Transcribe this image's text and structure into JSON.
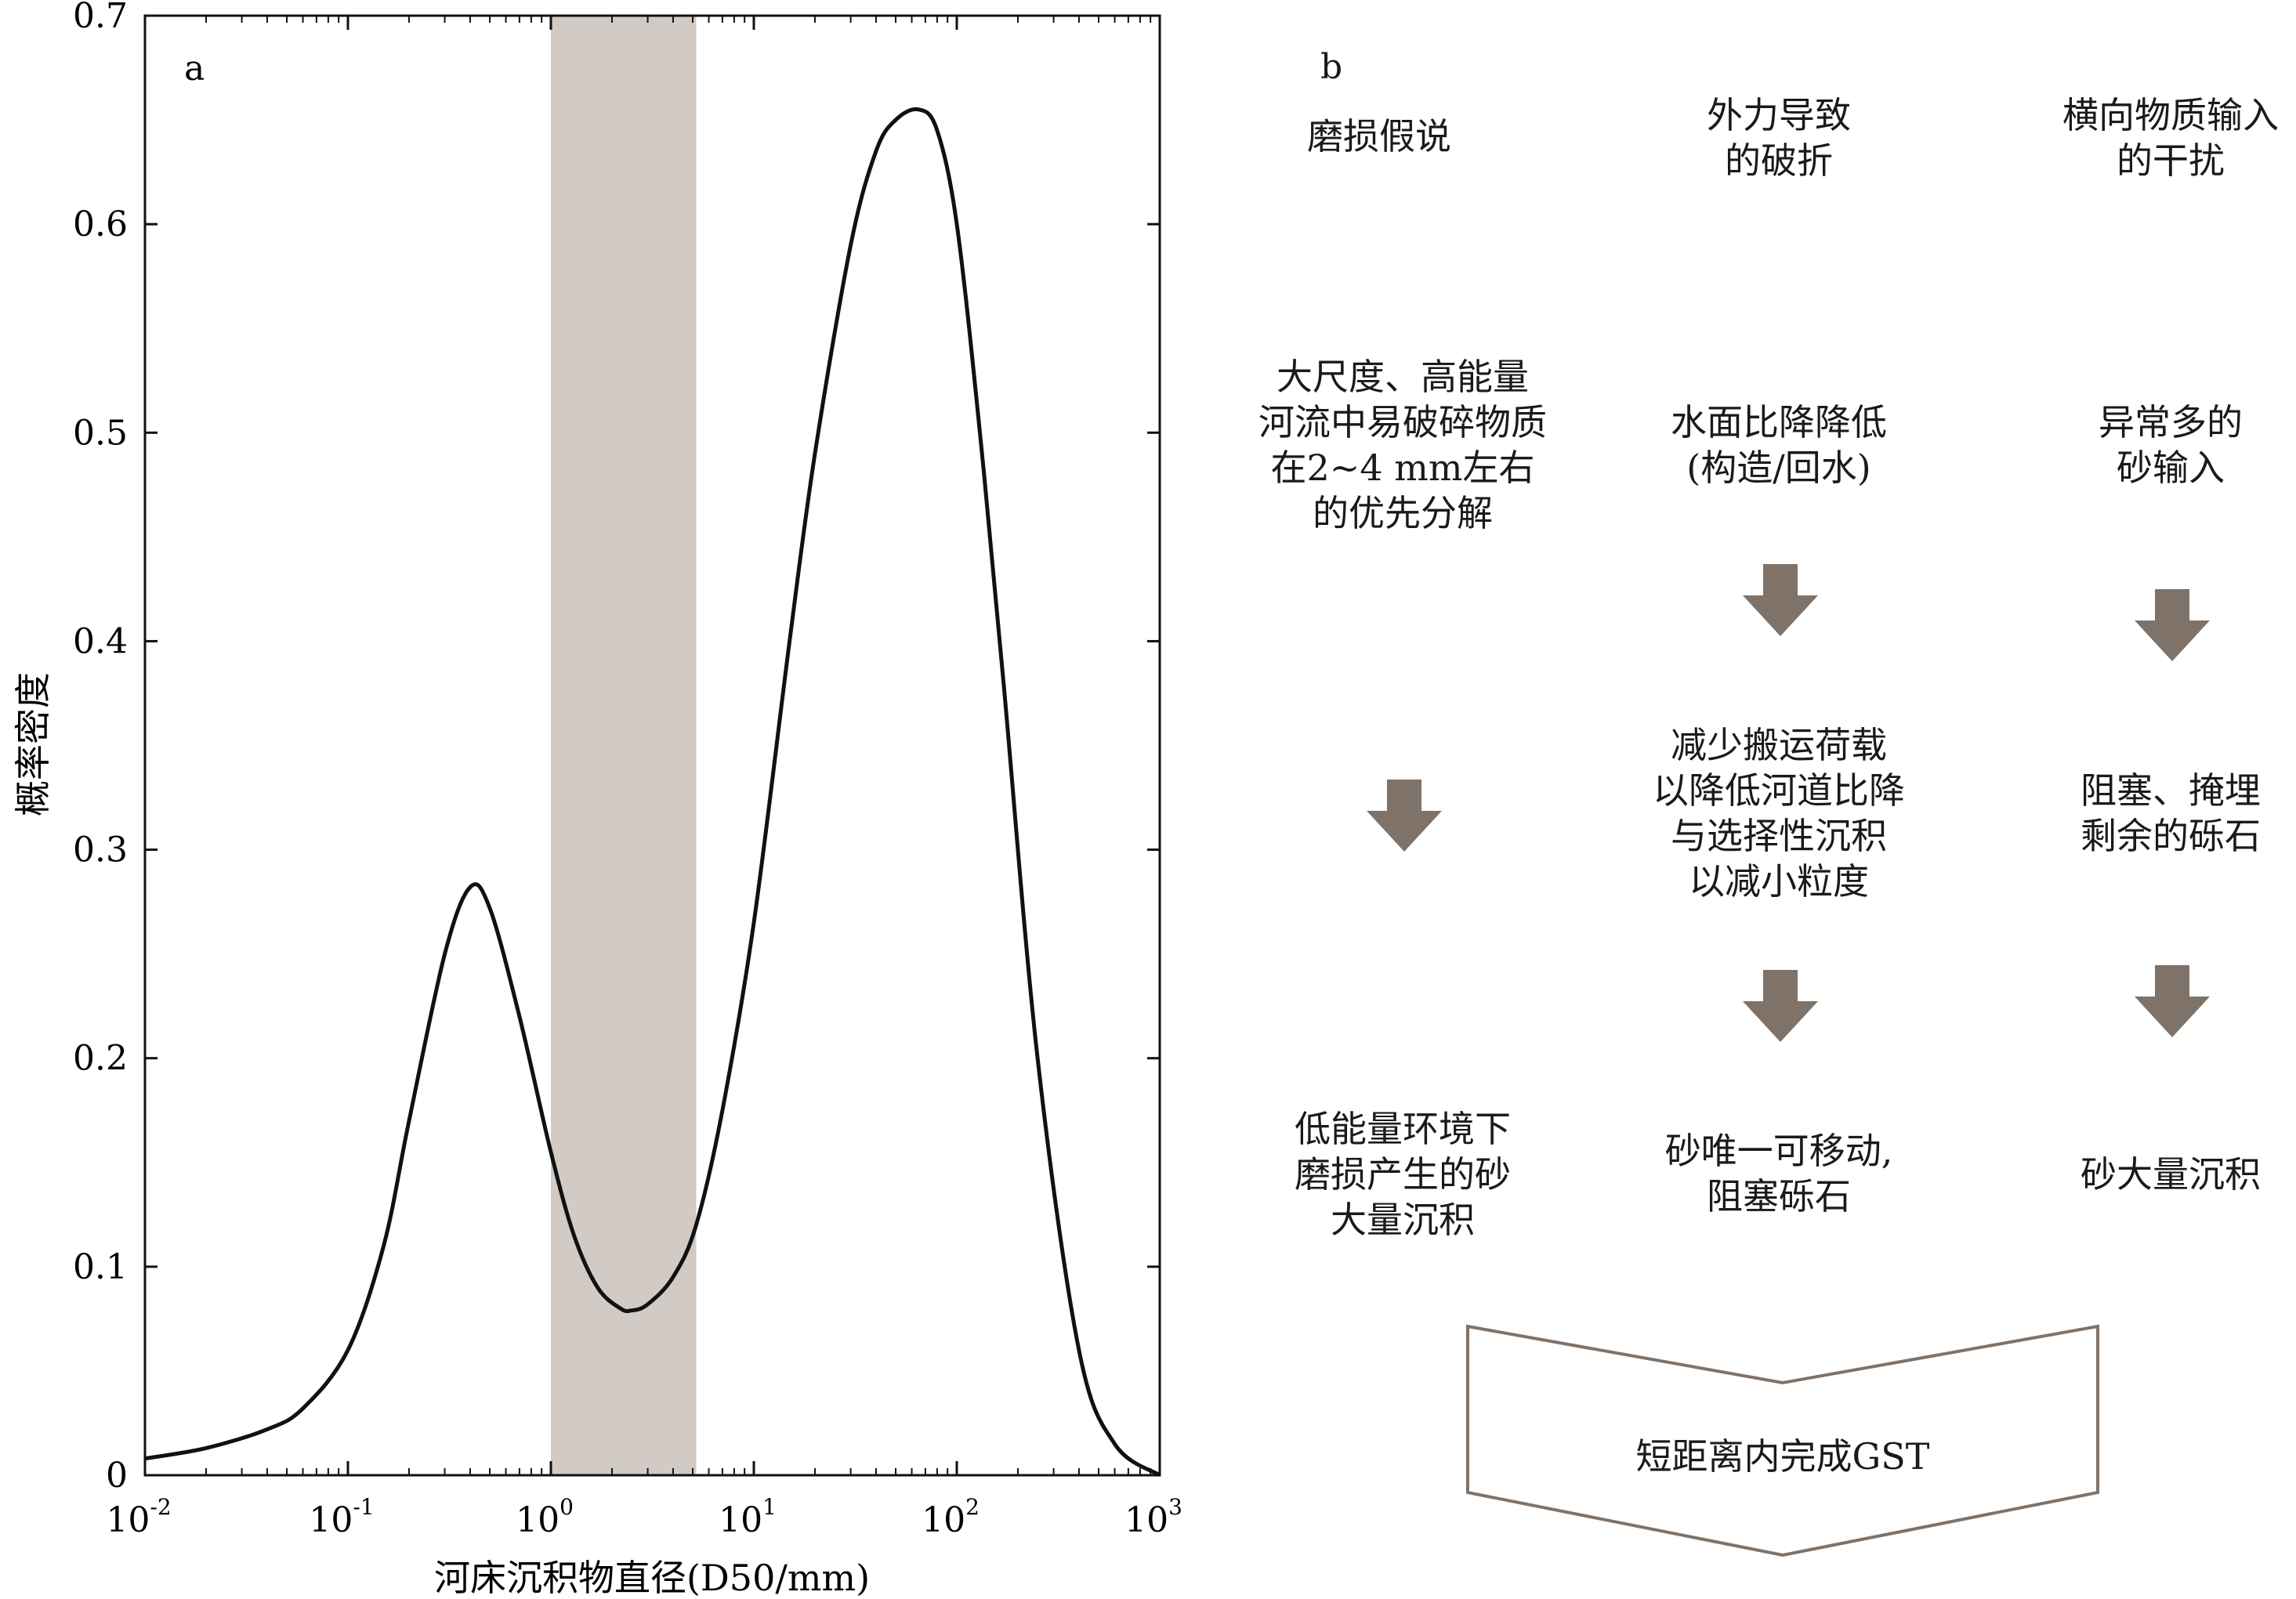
{
  "chart_data": {
    "type": "line",
    "panel_label": "a",
    "xlabel": "河床沉积物直径(D50/mm)",
    "ylabel": "概率密度",
    "xscale": "log",
    "xlim": [
      0.01,
      1000
    ],
    "ylim": [
      0,
      0.7
    ],
    "x_ticks": [
      {
        "base": "10",
        "exp": "-2",
        "value": 0.01
      },
      {
        "base": "10",
        "exp": "-1",
        "value": 0.1
      },
      {
        "base": "10",
        "exp": "0",
        "value": 1
      },
      {
        "base": "10",
        "exp": "1",
        "value": 10
      },
      {
        "base": "10",
        "exp": "2",
        "value": 100
      },
      {
        "base": "10",
        "exp": "3",
        "value": 1000
      }
    ],
    "y_ticks": [
      "0",
      "0.1",
      "0.2",
      "0.3",
      "0.4",
      "0.5",
      "0.6",
      "0.7"
    ],
    "y_tick_values": [
      0,
      0.1,
      0.2,
      0.3,
      0.4,
      0.5,
      0.6,
      0.7
    ],
    "shaded_region": {
      "x_range": [
        1,
        5.2
      ],
      "color": "#d2cac4"
    },
    "line_color": "#111111",
    "series": [
      {
        "x": [
          0.01,
          0.02,
          0.04,
          0.06,
          0.1,
          0.15,
          0.2,
          0.3,
          0.4,
          0.5,
          0.7,
          1.0,
          1.3,
          1.7,
          2.2,
          2.5,
          3.0,
          4.0,
          5.2,
          7,
          10,
          15,
          20,
          30,
          40,
          50,
          65,
          80,
          100,
          130,
          170,
          250,
          400,
          600,
          1000
        ],
        "y": [
          0.008,
          0.013,
          0.022,
          0.032,
          0.06,
          0.11,
          0.17,
          0.25,
          0.282,
          0.272,
          0.22,
          0.155,
          0.115,
          0.09,
          0.08,
          0.079,
          0.082,
          0.095,
          0.12,
          0.175,
          0.265,
          0.4,
          0.49,
          0.59,
          0.635,
          0.65,
          0.655,
          0.645,
          0.6,
          0.5,
          0.38,
          0.2,
          0.06,
          0.015,
          0.0
        ]
      }
    ]
  },
  "diagram": {
    "panel_label": "b",
    "columns": [
      {
        "header": "磨损假说",
        "step1": "大尺度、高能量\n河流中易破碎物质\n在2~4 mm左右\n的优先分解",
        "result": "低能量环境下\n磨损产生的砂\n大量沉积"
      },
      {
        "header": "外力导致\n的破折",
        "step1": "水面比降降低\n(构造/回水)",
        "step2": "减少搬运荷载\n以降低河道比降\n与选择性沉积\n以减小粒度",
        "result": "砂唯一可移动,\n阻塞砾石"
      },
      {
        "header": "横向物质输入\n的干扰",
        "step1": "异常多的\n砂输入",
        "step2": "阻塞、掩埋\n剩余的砾石",
        "result": "砂大量沉积"
      }
    ],
    "conclusion": "短距离内完成GST",
    "arrow_color": "#7f7268"
  }
}
